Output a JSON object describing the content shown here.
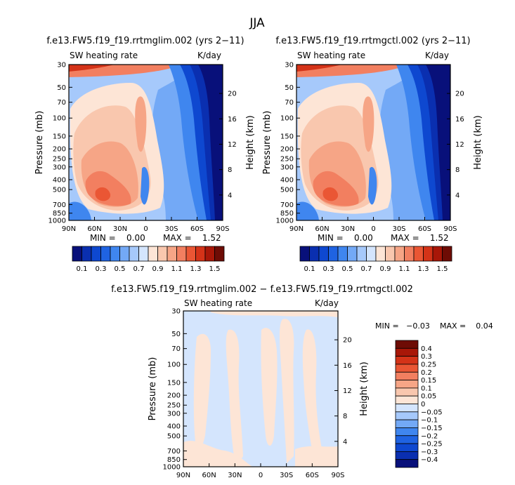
{
  "figure": {
    "season": "JJA",
    "diff_title": "f.e13.FW5.f19_f19.rrtmglim.002 − f.e13.FW5.f19_f19.rrtmgctl.002"
  },
  "common": {
    "var_label": "SW heating rate",
    "units": "K/day",
    "ylabel_left": "Pressure (mb)",
    "ylabel_right": "Height (km)",
    "p_ticks": [
      "30",
      "50",
      "70",
      "100",
      "150",
      "200",
      "250",
      "300",
      "400",
      "500",
      "700",
      "850",
      "1000"
    ],
    "p_values": [
      30,
      50,
      70,
      100,
      150,
      200,
      250,
      300,
      400,
      500,
      700,
      850,
      1000
    ],
    "h_ticks": [
      "20",
      "16",
      "12",
      "8",
      "4"
    ],
    "h_values": [
      20,
      16,
      12,
      8,
      4
    ],
    "x_ticks": [
      "90N",
      "60N",
      "30N",
      "0",
      "30S",
      "60S",
      "90S"
    ],
    "x_values": [
      90,
      60,
      30,
      0,
      -30,
      -60,
      -90
    ]
  },
  "chart_data": [
    {
      "type": "heatmap",
      "title": "f.e13.FW5.f19_f19.rrtmglim.002 (yrs 2−11)",
      "min_label": "MIN =    0.00",
      "max_label": "MAX =    1.52",
      "xlim": [
        90,
        -90
      ],
      "ylim": [
        1000,
        30
      ],
      "levels": [
        0.1,
        0.2,
        0.3,
        0.4,
        0.5,
        0.6,
        0.7,
        0.8,
        0.9,
        1.0,
        1.1,
        1.2,
        1.3,
        1.4,
        1.5
      ],
      "colorbar_labels": [
        "0.1",
        "0.3",
        "0.5",
        "0.7",
        "0.9",
        "1.1",
        "1.3",
        "1.5"
      ]
    },
    {
      "type": "heatmap",
      "title": "f.e13.FW5.f19_f19.rrtmgctl.002 (yrs 2−11)",
      "min_label": "MIN =    0.00",
      "max_label": "MAX =    1.52",
      "xlim": [
        90,
        -90
      ],
      "ylim": [
        1000,
        30
      ],
      "levels": [
        0.1,
        0.2,
        0.3,
        0.4,
        0.5,
        0.6,
        0.7,
        0.8,
        0.9,
        1.0,
        1.1,
        1.2,
        1.3,
        1.4,
        1.5
      ],
      "colorbar_labels": [
        "0.1",
        "0.3",
        "0.5",
        "0.7",
        "0.9",
        "1.1",
        "1.3",
        "1.5"
      ]
    },
    {
      "type": "heatmap",
      "title": "",
      "min_label": "MIN =   −0.03",
      "max_label": "MAX =    0.04",
      "xlim": [
        90,
        -90
      ],
      "ylim": [
        1000,
        30
      ],
      "levels": [
        -0.4,
        -0.3,
        -0.25,
        -0.2,
        -0.15,
        -0.1,
        -0.05,
        0,
        0.05,
        0.1,
        0.15,
        0.2,
        0.25,
        0.3,
        0.4
      ],
      "colorbar_labels": [
        "0.4",
        "0.3",
        "0.25",
        "0.2",
        "0.15",
        "0.1",
        "0.05",
        "0",
        "−0.05",
        "−0.1",
        "−0.15",
        "−0.2",
        "−0.25",
        "−0.3",
        "−0.4"
      ]
    }
  ],
  "colors": {
    "main_palette": [
      "#08107a",
      "#0a2fb0",
      "#0e48d0",
      "#1f63e2",
      "#3f86ef",
      "#73a9f6",
      "#a6c9fb",
      "#d4e5fd",
      "#fde5d6",
      "#f9c7ae",
      "#f6a586",
      "#f27f60",
      "#ea5634",
      "#d43318",
      "#a81708",
      "#6e0c05"
    ],
    "diff_palette": [
      "#6e0c05",
      "#a81708",
      "#d43318",
      "#ea5634",
      "#f27f60",
      "#f6a586",
      "#f9c7ae",
      "#fde5d6",
      "#d4e5fd",
      "#a6c9fb",
      "#73a9f6",
      "#3f86ef",
      "#1f63e2",
      "#0e48d0",
      "#0a2fb0",
      "#08107a"
    ]
  }
}
